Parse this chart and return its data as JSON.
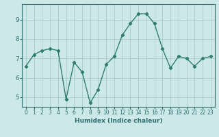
{
  "x": [
    0,
    1,
    2,
    3,
    4,
    5,
    6,
    7,
    8,
    9,
    10,
    11,
    12,
    13,
    14,
    15,
    16,
    17,
    18,
    19,
    20,
    21,
    22,
    23
  ],
  "y": [
    6.6,
    7.2,
    7.4,
    7.5,
    7.4,
    4.9,
    6.8,
    6.3,
    4.7,
    5.4,
    6.7,
    7.1,
    8.2,
    8.8,
    9.3,
    9.3,
    8.8,
    7.5,
    6.5,
    7.1,
    7.0,
    6.6,
    7.0,
    7.1
  ],
  "line_color": "#2e7d6e",
  "marker": "D",
  "marker_size": 2.2,
  "linewidth": 1.0,
  "bg_color": "#cce8e8",
  "grid_color": "#aacccc",
  "xlabel": "Humidex (Indice chaleur)",
  "xlim": [
    -0.5,
    23.5
  ],
  "ylim": [
    4.5,
    9.8
  ],
  "yticks": [
    5,
    6,
    7,
    8,
    9
  ],
  "xticks": [
    0,
    1,
    2,
    3,
    4,
    5,
    6,
    7,
    8,
    9,
    10,
    11,
    12,
    13,
    14,
    15,
    16,
    17,
    18,
    19,
    20,
    21,
    22,
    23
  ],
  "xtick_labels": [
    "0",
    "1",
    "2",
    "3",
    "4",
    "5",
    "6",
    "7",
    "8",
    "9",
    "10",
    "11",
    "12",
    "13",
    "14",
    "15",
    "16",
    "17",
    "18",
    "19",
    "20",
    "21",
    "22",
    "23"
  ],
  "tick_color": "#2e6e6e",
  "label_fontsize": 6.5,
  "tick_fontsize": 5.5,
  "ytick_fontsize": 6.5
}
